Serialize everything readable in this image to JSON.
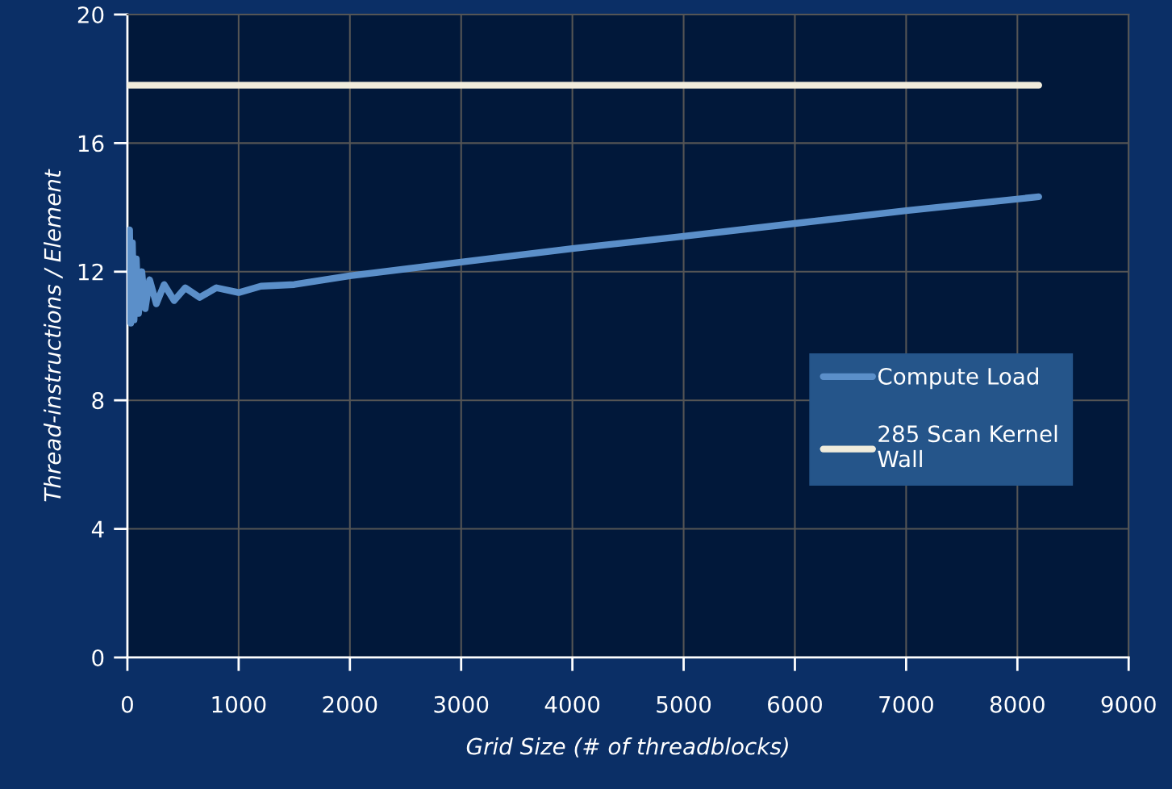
{
  "chart_data": {
    "type": "line",
    "xlabel": "Grid Size (# of threadblocks)",
    "ylabel": "Thread-instructions / Element",
    "xlim": [
      0,
      9000
    ],
    "xticks": [
      0,
      1000,
      2000,
      3000,
      4000,
      5000,
      6000,
      7000,
      8000,
      9000
    ],
    "ylim": [
      0,
      20
    ],
    "yticks": [
      0,
      4,
      8,
      12,
      16,
      20
    ],
    "grid": true,
    "legend": "right",
    "marker": "none",
    "line_style": "solid",
    "series": [
      {
        "name": "Compute Load",
        "color": "#5b8fc9",
        "x": [
          20,
          30,
          45,
          60,
          80,
          100,
          130,
          160,
          200,
          260,
          330,
          420,
          520,
          650,
          800,
          1000,
          1200,
          1500,
          2000,
          3000,
          4000,
          5000,
          6000,
          7000,
          8192
        ],
        "values": [
          13.3,
          10.4,
          12.9,
          10.5,
          12.4,
          10.7,
          12.0,
          10.85,
          11.75,
          11.0,
          11.6,
          11.1,
          11.5,
          11.2,
          11.5,
          11.35,
          11.55,
          11.6,
          11.87,
          12.3,
          12.72,
          13.1,
          13.5,
          13.9,
          14.33
        ]
      },
      {
        "name": "285 Scan Kernel\nWall",
        "color": "#f0ecdc",
        "x": [
          16,
          8192
        ],
        "values": [
          17.8,
          17.8
        ]
      }
    ]
  }
}
